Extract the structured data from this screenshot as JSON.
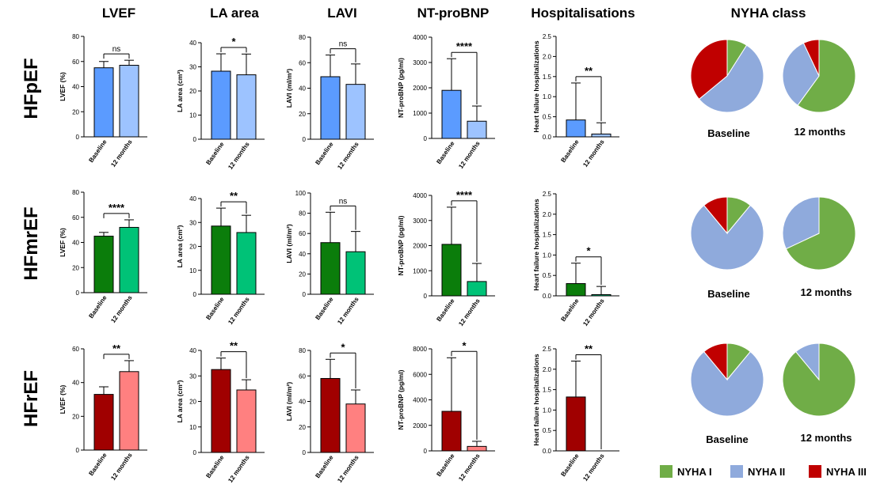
{
  "column_headers": [
    "LVEF",
    "LA area",
    "LAVI",
    "NT-proBNP",
    "Hospitalisations",
    "NYHA class"
  ],
  "row_labels": [
    "HFpEF",
    "HFmrEF",
    "HFrEF"
  ],
  "x_categories": [
    "Baseline",
    "12 months"
  ],
  "y_axis_labels": [
    "LVEF (%)",
    "LA area (cm²)",
    "LAVI (ml/m²)",
    "NT-proBNP (pg/ml)",
    "Heart failure hospitalizations"
  ],
  "pie_captions": [
    "Baseline",
    "12 months"
  ],
  "legend": [
    {
      "label": "NYHA I",
      "color": "#70ad47"
    },
    {
      "label": "NYHA II",
      "color": "#8faadc"
    },
    {
      "label": "NYHA III",
      "color": "#c00000"
    }
  ],
  "row_colors": [
    {
      "baseline": "#5b9bff",
      "month12": "#9dc3ff"
    },
    {
      "baseline": "#0b7d0b",
      "month12": "#00c277"
    },
    {
      "baseline": "#a00000",
      "month12": "#ff8080"
    }
  ],
  "chart_data": [
    {
      "type": "bar",
      "panel": "HFpEF-LVEF",
      "categories": [
        "Baseline",
        "12 months"
      ],
      "values": [
        55,
        57
      ],
      "errors": [
        5,
        4
      ],
      "ylim": [
        0,
        80
      ],
      "yticks": [
        0,
        20,
        40,
        60,
        80
      ],
      "significance": "ns"
    },
    {
      "type": "bar",
      "panel": "HFpEF-LA area",
      "categories": [
        "Baseline",
        "12 months"
      ],
      "values": [
        28.2,
        26.7
      ],
      "errors": [
        7.2,
        8.6
      ],
      "ylim": [
        0,
        40
      ],
      "yticks": [
        0,
        10,
        20,
        30,
        40
      ],
      "significance": "*"
    },
    {
      "type": "bar",
      "panel": "HFpEF-LAVI",
      "categories": [
        "Baseline",
        "12 months"
      ],
      "values": [
        49,
        43
      ],
      "errors": [
        17,
        16
      ],
      "ylim": [
        0,
        80
      ],
      "yticks": [
        0,
        20,
        40,
        60,
        80
      ],
      "significance": "ns"
    },
    {
      "type": "bar",
      "panel": "HFpEF-NT-proBNP",
      "categories": [
        "Baseline",
        "12 months"
      ],
      "values": [
        1900,
        680
      ],
      "errors": [
        1250,
        600
      ],
      "ylim": [
        0,
        4000
      ],
      "yticks": [
        0,
        1000,
        2000,
        3000,
        4000
      ],
      "significance": "****"
    },
    {
      "type": "bar",
      "panel": "HFpEF-Hospitalisations",
      "categories": [
        "Baseline",
        "12 months"
      ],
      "values": [
        0.42,
        0.07
      ],
      "errors": [
        0.92,
        0.28
      ],
      "ylim": [
        0,
        2.5
      ],
      "yticks": [
        0.0,
        0.5,
        1.0,
        1.5,
        2.0,
        2.5
      ],
      "significance": "**"
    },
    {
      "type": "bar",
      "panel": "HFmrEF-LVEF",
      "categories": [
        "Baseline",
        "12 months"
      ],
      "values": [
        45,
        52
      ],
      "errors": [
        3,
        6
      ],
      "ylim": [
        0,
        80
      ],
      "yticks": [
        0,
        20,
        40,
        60,
        80
      ],
      "significance": "****"
    },
    {
      "type": "bar",
      "panel": "HFmrEF-LA area",
      "categories": [
        "Baseline",
        "12 months"
      ],
      "values": [
        28.5,
        25.8
      ],
      "errors": [
        7.5,
        7.2
      ],
      "ylim": [
        0,
        40
      ],
      "yticks": [
        0,
        10,
        20,
        30,
        40
      ],
      "significance": "**"
    },
    {
      "type": "bar",
      "panel": "HFmrEF-LAVI",
      "categories": [
        "Baseline",
        "12 months"
      ],
      "values": [
        51,
        42
      ],
      "errors": [
        30,
        20
      ],
      "ylim": [
        0,
        100
      ],
      "yticks": [
        0,
        20,
        40,
        60,
        80,
        100
      ],
      "significance": "ns"
    },
    {
      "type": "bar",
      "panel": "HFmrEF-NT-proBNP",
      "categories": [
        "Baseline",
        "12 months"
      ],
      "values": [
        2050,
        570
      ],
      "errors": [
        1480,
        720
      ],
      "ylim": [
        0,
        4000
      ],
      "yticks": [
        0,
        1000,
        2000,
        3000,
        4000
      ],
      "significance": "****"
    },
    {
      "type": "bar",
      "panel": "HFmrEF-Hospitalisations",
      "categories": [
        "Baseline",
        "12 months"
      ],
      "values": [
        0.3,
        0.03
      ],
      "errors": [
        0.5,
        0.2
      ],
      "ylim": [
        0,
        2.5
      ],
      "yticks": [
        0.0,
        0.5,
        1.0,
        1.5,
        2.0,
        2.5
      ],
      "significance": "*"
    },
    {
      "type": "bar",
      "panel": "HFrEF-LVEF",
      "categories": [
        "Baseline",
        "12 months"
      ],
      "values": [
        33,
        46.5
      ],
      "errors": [
        4.5,
        6.5
      ],
      "ylim": [
        0,
        60
      ],
      "yticks": [
        0,
        20,
        40,
        60
      ],
      "significance": "**"
    },
    {
      "type": "bar",
      "panel": "HFrEF-LA area",
      "categories": [
        "Baseline",
        "12 months"
      ],
      "values": [
        32.5,
        24.5
      ],
      "errors": [
        4.5,
        4
      ],
      "ylim": [
        0,
        40
      ],
      "yticks": [
        0,
        10,
        20,
        30,
        40
      ],
      "significance": "**"
    },
    {
      "type": "bar",
      "panel": "HFrEF-LAVI",
      "categories": [
        "Baseline",
        "12 months"
      ],
      "values": [
        58,
        38
      ],
      "errors": [
        15,
        11
      ],
      "ylim": [
        0,
        80
      ],
      "yticks": [
        0,
        20,
        40,
        60,
        80
      ],
      "significance": "*"
    },
    {
      "type": "bar",
      "panel": "HFrEF-NT-proBNP",
      "categories": [
        "Baseline",
        "12 months"
      ],
      "values": [
        3100,
        350
      ],
      "errors": [
        4200,
        400
      ],
      "ylim": [
        0,
        8000
      ],
      "yticks": [
        0,
        2000,
        4000,
        6000,
        8000
      ],
      "significance": "*"
    },
    {
      "type": "bar",
      "panel": "HFrEF-Hospitalisations",
      "categories": [
        "Baseline",
        "12 months"
      ],
      "values": [
        1.32,
        0
      ],
      "errors": [
        0.88,
        0
      ],
      "ylim": [
        0,
        2.5
      ],
      "yticks": [
        0.0,
        0.5,
        1.0,
        1.5,
        2.0,
        2.5
      ],
      "significance": "**"
    },
    {
      "type": "pie",
      "panel": "HFpEF-NYHA-Baseline",
      "labels": [
        "NYHA I",
        "NYHA II",
        "NYHA III"
      ],
      "values": [
        9,
        55,
        36
      ]
    },
    {
      "type": "pie",
      "panel": "HFpEF-NYHA-12 months",
      "labels": [
        "NYHA I",
        "NYHA II",
        "NYHA III"
      ],
      "values": [
        60,
        33,
        7
      ]
    },
    {
      "type": "pie",
      "panel": "HFmrEF-NYHA-Baseline",
      "labels": [
        "NYHA I",
        "NYHA II",
        "NYHA III"
      ],
      "values": [
        11,
        78,
        11
      ]
    },
    {
      "type": "pie",
      "panel": "HFmrEF-NYHA-12 months",
      "labels": [
        "NYHA I",
        "NYHA II",
        "NYHA III"
      ],
      "values": [
        68,
        32,
        0
      ]
    },
    {
      "type": "pie",
      "panel": "HFrEF-NYHA-Baseline",
      "labels": [
        "NYHA I",
        "NYHA II",
        "NYHA III"
      ],
      "values": [
        11,
        78,
        11
      ]
    },
    {
      "type": "pie",
      "panel": "HFrEF-NYHA-12 months",
      "labels": [
        "NYHA I",
        "NYHA II",
        "NYHA III"
      ],
      "values": [
        89,
        11,
        0
      ]
    }
  ]
}
